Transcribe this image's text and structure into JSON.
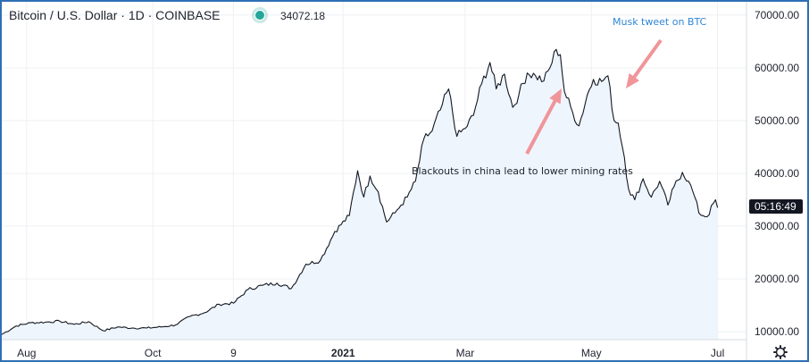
{
  "header": {
    "title": "Bitcoin / U.S. Dollar · 1D · COINBASE",
    "last_value": "34072.18",
    "status_color": "#26a69a"
  },
  "price_label": {
    "countdown": "05:16:49"
  },
  "annotations": {
    "musk": "Musk tweet on BTC",
    "blackouts": "Blackouts in china lead to lower mining rates"
  },
  "settings": {
    "icon": "gear-icon"
  },
  "colors": {
    "line": "#131722",
    "area": "#eef5fd",
    "arrow": "#f0959a",
    "annotation_blue": "#2e86d6",
    "border": "#2f6fb5"
  },
  "chart_data": {
    "type": "line",
    "title": "Bitcoin / U.S. Dollar · 1D · COINBASE",
    "x_tick_labels": [
      "Aug",
      "Oct",
      "9",
      "2021",
      "Mar",
      "May",
      "Jul"
    ],
    "y_tick_labels": [
      "70000.00",
      "60000.00",
      "50000.00",
      "40000.00",
      "30000.00",
      "20000.00",
      "10000.00"
    ],
    "ylim": [
      8500,
      72500
    ],
    "xlim": [
      "2020-07-20",
      "2021-07-15"
    ],
    "grid": true,
    "series": [
      {
        "x": [
          "2020-07-20",
          "2020-07-27",
          "2020-08-03",
          "2020-08-10",
          "2020-08-17",
          "2020-08-24",
          "2020-08-31",
          "2020-09-07",
          "2020-09-14",
          "2020-09-21",
          "2020-09-28",
          "2020-10-05",
          "2020-10-12",
          "2020-10-19",
          "2020-10-26",
          "2020-11-02",
          "2020-11-09",
          "2020-11-16",
          "2020-11-23",
          "2020-11-30",
          "2020-12-07",
          "2020-12-14",
          "2020-12-21",
          "2020-12-28",
          "2021-01-04",
          "2021-01-08",
          "2021-01-11",
          "2021-01-14",
          "2021-01-18",
          "2021-01-22",
          "2021-01-26",
          "2021-01-29",
          "2021-02-01",
          "2021-02-05",
          "2021-02-09",
          "2021-02-13",
          "2021-02-17",
          "2021-02-21",
          "2021-02-25",
          "2021-03-01",
          "2021-03-05",
          "2021-03-09",
          "2021-03-13",
          "2021-03-16",
          "2021-03-20",
          "2021-03-24",
          "2021-03-27",
          "2021-03-31",
          "2021-04-04",
          "2021-04-08",
          "2021-04-11",
          "2021-04-14",
          "2021-04-16",
          "2021-04-18",
          "2021-04-22",
          "2021-04-25",
          "2021-04-29",
          "2021-05-02",
          "2021-05-06",
          "2021-05-09",
          "2021-05-12",
          "2021-05-14",
          "2021-05-17",
          "2021-05-19",
          "2021-05-22",
          "2021-05-26",
          "2021-05-30",
          "2021-06-03",
          "2021-06-07",
          "2021-06-10",
          "2021-06-14",
          "2021-06-17",
          "2021-06-20",
          "2021-06-22",
          "2021-06-26",
          "2021-06-30",
          "2021-07-01"
        ],
        "y": [
          9500,
          11100,
          11700,
          11800,
          12000,
          11400,
          11900,
          10200,
          10900,
          10700,
          10700,
          10900,
          11300,
          12900,
          13600,
          15200,
          15400,
          18000,
          18800,
          19200,
          18200,
          22800,
          23500,
          29000,
          32000,
          40500,
          35500,
          39500,
          36500,
          30800,
          32500,
          34000,
          35500,
          38500,
          46500,
          48000,
          52000,
          56000,
          47000,
          48500,
          51000,
          57000,
          61000,
          56000,
          58800,
          52500,
          55000,
          59000,
          58500,
          57500,
          60000,
          63500,
          62500,
          55500,
          51500,
          49000,
          54800,
          57800,
          57400,
          58500,
          50000,
          49500,
          43000,
          37000,
          35000,
          39000,
          35500,
          38500,
          34000,
          37500,
          40200,
          38500,
          35500,
          32500,
          31800,
          35000,
          33500
        ]
      }
    ]
  }
}
